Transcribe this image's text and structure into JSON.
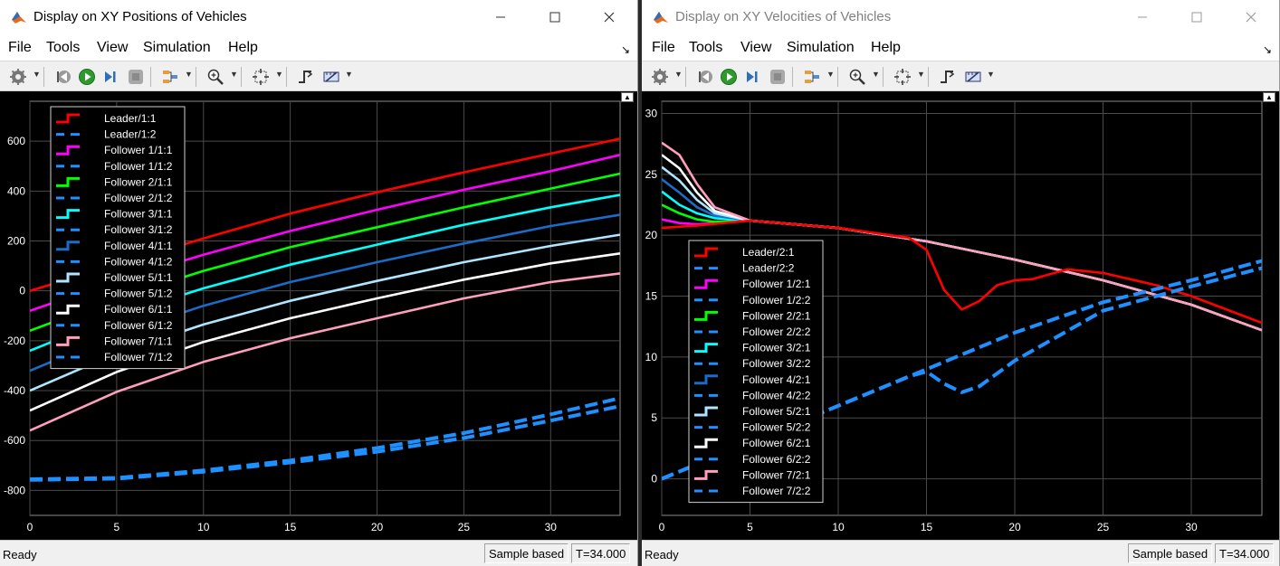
{
  "colors": {
    "leader": "#ff0000",
    "follower1": "#ff00ff",
    "follower2": "#00ff00",
    "follower3": "#00ffff",
    "follower4": "#1a6cc8",
    "follower5": "#aee6ff",
    "follower6": "#ffffff",
    "follower7": "#ff9ebd",
    "dashed": "#1e90ff",
    "axes_text": "#ffffff",
    "grid": "#4a4a4a"
  },
  "menu": [
    "File",
    "Tools",
    "View",
    "Simulation",
    "Help"
  ],
  "toolbar_icons": [
    "gear-icon",
    "step-back-icon",
    "run-icon",
    "step-forward-icon",
    "stop-icon",
    "highlight-icon",
    "zoom-in-icon",
    "fit-axes-icon",
    "triggers-icon",
    "cursor-measure-icon"
  ],
  "windows": {
    "left": {
      "title": "Display on XY Positions of Vehicles",
      "status": "Ready",
      "sample": "Sample based",
      "time": "T=34.000"
    },
    "right": {
      "title": "Display on XY Velocities of Vehicles",
      "status": "Ready",
      "sample": "Sample based",
      "time": "T=34.000"
    }
  },
  "chart_data": [
    {
      "type": "line",
      "title": "",
      "xlabel": "",
      "ylabel": "",
      "xlim": [
        0,
        34
      ],
      "ylim": [
        -900,
        760
      ],
      "xticks": [
        0,
        5,
        10,
        15,
        20,
        25,
        30
      ],
      "yticks": [
        -800,
        -600,
        -400,
        -200,
        0,
        200,
        400,
        600
      ],
      "grid": true,
      "legend_position": "top-left",
      "legend": [
        "Leader/1:1",
        "Leader/1:2",
        "Follower 1/1:1",
        "Follower 1/1:2",
        "Follower 2/1:1",
        "Follower 2/1:2",
        "Follower 3/1:1",
        "Follower 3/1:2",
        "Follower 4/1:1",
        "Follower 4/1:2",
        "Follower 5/1:1",
        "Follower 5/1:2",
        "Follower 6/1:1",
        "Follower 6/1:2",
        "Follower 7/1:1",
        "Follower 7/1:2"
      ],
      "series": [
        {
          "name": "Leader/1:1",
          "style": "solid",
          "x": [
            0,
            5,
            10,
            15,
            20,
            25,
            30,
            34
          ],
          "y": [
            0,
            105,
            210,
            310,
            395,
            475,
            550,
            610
          ]
        },
        {
          "name": "Follower 1/1:1",
          "style": "solid",
          "x": [
            0,
            5,
            10,
            15,
            20,
            25,
            30,
            34
          ],
          "y": [
            -80,
            40,
            145,
            240,
            325,
            405,
            480,
            545
          ]
        },
        {
          "name": "Follower 2/1:1",
          "style": "solid",
          "x": [
            0,
            5,
            10,
            15,
            20,
            25,
            30,
            34
          ],
          "y": [
            -160,
            -30,
            80,
            175,
            255,
            335,
            410,
            470
          ]
        },
        {
          "name": "Follower 3/1:1",
          "style": "solid",
          "x": [
            0,
            5,
            10,
            15,
            20,
            25,
            30,
            34
          ],
          "y": [
            -240,
            -100,
            10,
            105,
            185,
            265,
            335,
            385
          ]
        },
        {
          "name": "Follower 4/1:1",
          "style": "solid",
          "x": [
            0,
            5,
            10,
            15,
            20,
            25,
            30,
            34
          ],
          "y": [
            -320,
            -175,
            -60,
            35,
            115,
            190,
            260,
            305
          ]
        },
        {
          "name": "Follower 5/1:1",
          "style": "solid",
          "x": [
            0,
            5,
            10,
            15,
            20,
            25,
            30,
            34
          ],
          "y": [
            -400,
            -250,
            -135,
            -40,
            40,
            115,
            180,
            225
          ]
        },
        {
          "name": "Follower 6/1:1",
          "style": "solid",
          "x": [
            0,
            5,
            10,
            15,
            20,
            25,
            30,
            34
          ],
          "y": [
            -480,
            -325,
            -205,
            -110,
            -30,
            45,
            110,
            150
          ]
        },
        {
          "name": "Follower 7/1:1",
          "style": "solid",
          "x": [
            0,
            5,
            10,
            15,
            20,
            25,
            30,
            34
          ],
          "y": [
            -560,
            -405,
            -285,
            -190,
            -110,
            -30,
            35,
            70
          ]
        },
        {
          "name": "Leader/1:2",
          "style": "dashed",
          "x": [
            0,
            5,
            10,
            15,
            20,
            25,
            30,
            34
          ],
          "y": [
            -755,
            -750,
            -720,
            -680,
            -630,
            -570,
            -495,
            -430
          ]
        },
        {
          "name": "Follower 7/1:2",
          "style": "dashed",
          "x": [
            0,
            5,
            10,
            15,
            20,
            25,
            30,
            34
          ],
          "y": [
            -758,
            -753,
            -725,
            -688,
            -645,
            -590,
            -520,
            -462
          ]
        }
      ]
    },
    {
      "type": "line",
      "title": "",
      "xlabel": "",
      "ylabel": "",
      "xlim": [
        0,
        34
      ],
      "ylim": [
        -3,
        31
      ],
      "xticks": [
        0,
        5,
        10,
        15,
        20,
        25,
        30
      ],
      "yticks": [
        0,
        5,
        10,
        15,
        20,
        25,
        30
      ],
      "grid": true,
      "legend_position": "bottom-left",
      "legend": [
        "Leader/2:1",
        "Leader/2:2",
        "Follower 1/2:1",
        "Follower 1/2:2",
        "Follower 2/2:1",
        "Follower 2/2:2",
        "Follower 3/2:1",
        "Follower 3/2:2",
        "Follower 4/2:1",
        "Follower 4/2:2",
        "Follower 5/2:1",
        "Follower 5/2:2",
        "Follower 6/2:1",
        "Follower 6/2:2",
        "Follower 7/2:1",
        "Follower 7/2:2"
      ],
      "series": [
        {
          "name": "Follower 1/2:1",
          "style": "solid",
          "x": [
            0,
            1,
            2,
            3,
            5,
            10,
            15,
            20,
            25,
            28,
            30,
            34
          ],
          "y": [
            21.3,
            21.0,
            20.9,
            21.0,
            21.2,
            20.6,
            19.5,
            18.0,
            16.3,
            15.1,
            14.3,
            12.2
          ]
        },
        {
          "name": "Follower 2/2:1",
          "style": "solid",
          "x": [
            0,
            1,
            2,
            3,
            5,
            10,
            15,
            20,
            25,
            28,
            30,
            34
          ],
          "y": [
            22.5,
            21.8,
            21.3,
            21.1,
            21.2,
            20.6,
            19.5,
            18.0,
            16.3,
            15.1,
            14.3,
            12.2
          ]
        },
        {
          "name": "Follower 3/2:1",
          "style": "solid",
          "x": [
            0,
            1,
            2,
            3,
            5,
            10,
            15,
            20,
            25,
            28,
            30,
            34
          ],
          "y": [
            23.6,
            22.5,
            21.8,
            21.4,
            21.2,
            20.6,
            19.5,
            18.0,
            16.3,
            15.1,
            14.3,
            12.2
          ]
        },
        {
          "name": "Follower 4/2:1",
          "style": "solid",
          "x": [
            0,
            1,
            2,
            3,
            5,
            10,
            15,
            20,
            25,
            28,
            30,
            34
          ],
          "y": [
            24.6,
            23.5,
            22.3,
            21.6,
            21.2,
            20.6,
            19.5,
            18.0,
            16.3,
            15.1,
            14.3,
            12.2
          ]
        },
        {
          "name": "Follower 5/2:1",
          "style": "solid",
          "x": [
            0,
            1,
            2,
            3,
            5,
            10,
            15,
            20,
            25,
            28,
            30,
            34
          ],
          "y": [
            25.6,
            24.5,
            22.9,
            21.8,
            21.2,
            20.6,
            19.5,
            18.0,
            16.3,
            15.1,
            14.3,
            12.2
          ]
        },
        {
          "name": "Follower 6/2:1",
          "style": "solid",
          "x": [
            0,
            1,
            2,
            3,
            5,
            10,
            15,
            20,
            25,
            28,
            30,
            34
          ],
          "y": [
            26.6,
            25.5,
            23.5,
            22.0,
            21.2,
            20.6,
            19.5,
            18.0,
            16.3,
            15.1,
            14.3,
            12.2
          ]
        },
        {
          "name": "Follower 7/2:1",
          "style": "solid",
          "x": [
            0,
            1,
            2,
            3,
            5,
            10,
            15,
            20,
            25,
            28,
            30,
            34
          ],
          "y": [
            27.6,
            26.6,
            24.2,
            22.3,
            21.2,
            20.6,
            19.5,
            18.0,
            16.3,
            15.1,
            14.3,
            12.2
          ]
        },
        {
          "name": "Leader/2:1",
          "style": "solid",
          "x": [
            0,
            2,
            5,
            10,
            14,
            15,
            16,
            17,
            18,
            19,
            20,
            21,
            22,
            23,
            25,
            28,
            30,
            34
          ],
          "y": [
            20.6,
            20.8,
            21.2,
            20.6,
            19.8,
            18.8,
            15.5,
            13.9,
            14.6,
            15.9,
            16.3,
            16.4,
            16.8,
            17.2,
            16.9,
            15.9,
            15.0,
            12.8
          ]
        },
        {
          "name": "Leader/2:2",
          "style": "dashed",
          "x": [
            0,
            5,
            10,
            15,
            20,
            25,
            30,
            34
          ],
          "y": [
            0,
            3.0,
            6.0,
            9.0,
            12.0,
            14.5,
            16.3,
            17.9
          ]
        },
        {
          "name": "Follower 1/2:2",
          "style": "dashed",
          "x": [
            0,
            5,
            10,
            14,
            15,
            16,
            17,
            18,
            20,
            25,
            30,
            34
          ],
          "y": [
            0,
            3.0,
            6.0,
            8.4,
            8.8,
            7.8,
            7.1,
            7.6,
            9.7,
            13.8,
            15.8,
            17.3
          ]
        }
      ]
    }
  ]
}
